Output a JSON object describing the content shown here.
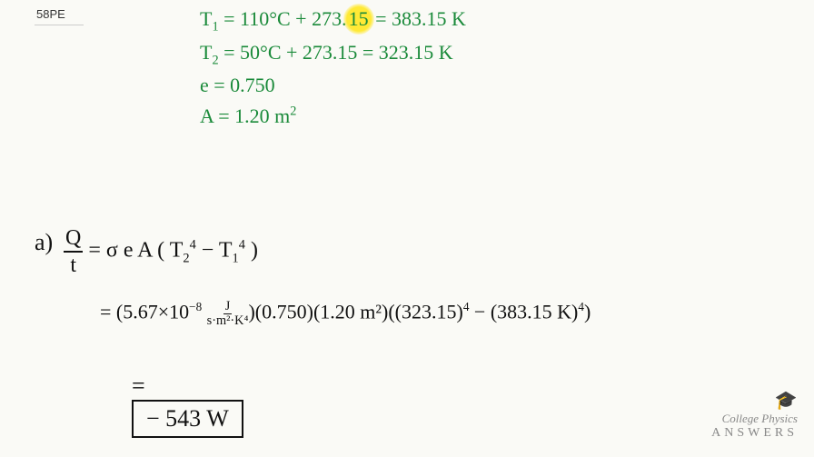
{
  "problem_label": "58PE",
  "given": {
    "t1_lhs": "T",
    "t1_sub": "1",
    "t1_expr": "= 110°C + 273.",
    "t1_highlight": "15",
    "t1_result": "= 383.15 K",
    "t2_lhs": "T",
    "t2_sub": "2",
    "t2_expr": "= 50°C + 273.15 = 323.15 K",
    "emiss_sym": "e",
    "emiss_val": "= 0.750",
    "area_sym": "A",
    "area_val": "= 1.20 m",
    "area_exp": "2"
  },
  "work": {
    "part": "a)",
    "lhs_num": "Q",
    "lhs_den": "t",
    "rhs1": "= σ e A ( T",
    "t2sub": "2",
    "exp4a": "4",
    "minus": " − T",
    "t1sub": "1",
    "exp4b": "4",
    "close1": " )",
    "line2_eq": "= (5.67×10",
    "line2_exp": "−8",
    "unit_top": "J",
    "unit_bot": "s·m²·K⁴",
    "line2_mid": ")(0.750)(1.20 m²)((323.15)",
    "line2_p4a": "4",
    "line2_mid2": " − (383.15 K)",
    "line2_p4b": "4",
    "line2_end": ")",
    "line3_eq": "=",
    "answer": "− 543 W"
  },
  "brand": {
    "line1": "College Physics",
    "line2": "ANSWERS"
  },
  "colors": {
    "given": "#1a8a3a",
    "ink": "#111111",
    "bg": "#fafaf6",
    "highlight": "#ffe936",
    "logo": "#888888"
  }
}
